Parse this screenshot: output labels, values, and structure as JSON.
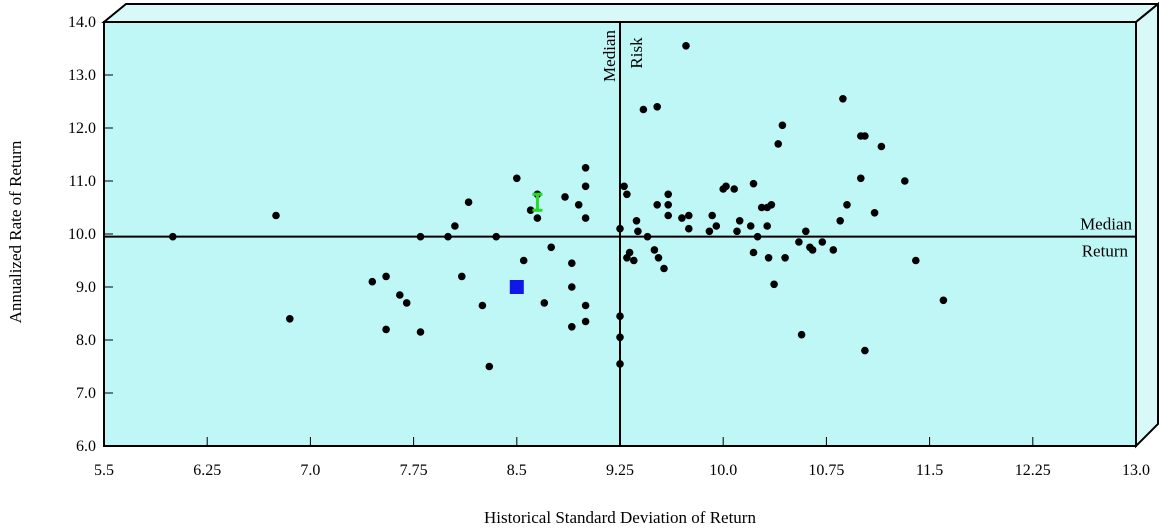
{
  "chart_data": {
    "type": "scatter",
    "xlabel": "Historical Standard Deviation of Return",
    "ylabel": "Annualized Rate of Return",
    "xlim": [
      5.5,
      13.0
    ],
    "ylim": [
      6.0,
      14.0
    ],
    "x_ticks": [
      "5.5",
      "6.25",
      "7.0",
      "7.75",
      "8.5",
      "9.25",
      "10.0",
      "10.75",
      "11.5",
      "12.25",
      "13.0"
    ],
    "y_ticks": [
      "6.0",
      "7.0",
      "8.0",
      "9.0",
      "10.0",
      "11.0",
      "12.0",
      "13.0",
      "14.0"
    ],
    "plot_background": "#bff7f7",
    "median_risk": {
      "value": 9.25,
      "label_line1": "Median",
      "label_line2": "Risk"
    },
    "median_return": {
      "value": 9.95,
      "label_line1": "Median",
      "label_line2": "Return"
    },
    "highlight_square": {
      "x": 8.5,
      "y": 9.0,
      "color": "#1018e8"
    },
    "highlight_marker": {
      "x": 8.65,
      "y": 10.6,
      "color": "#22dd22"
    },
    "point_color": "#000000",
    "points": [
      [
        6.0,
        9.95
      ],
      [
        6.75,
        10.35
      ],
      [
        6.85,
        8.4
      ],
      [
        7.45,
        9.1
      ],
      [
        7.55,
        9.2
      ],
      [
        7.55,
        8.2
      ],
      [
        7.65,
        8.85
      ],
      [
        7.7,
        8.7
      ],
      [
        7.8,
        8.15
      ],
      [
        7.8,
        9.95
      ],
      [
        8.0,
        9.95
      ],
      [
        8.05,
        10.15
      ],
      [
        8.1,
        9.2
      ],
      [
        8.15,
        10.6
      ],
      [
        8.25,
        8.65
      ],
      [
        8.3,
        7.5
      ],
      [
        8.35,
        9.95
      ],
      [
        8.5,
        11.05
      ],
      [
        8.55,
        9.5
      ],
      [
        8.6,
        10.45
      ],
      [
        8.65,
        10.3
      ],
      [
        8.65,
        10.75
      ],
      [
        8.7,
        8.7
      ],
      [
        8.75,
        9.75
      ],
      [
        8.85,
        10.7
      ],
      [
        8.9,
        9.45
      ],
      [
        8.9,
        9.0
      ],
      [
        8.9,
        8.25
      ],
      [
        8.95,
        10.55
      ],
      [
        9.0,
        11.25
      ],
      [
        9.0,
        10.9
      ],
      [
        9.0,
        10.3
      ],
      [
        9.0,
        8.65
      ],
      [
        9.0,
        8.35
      ],
      [
        9.25,
        10.1
      ],
      [
        9.25,
        8.45
      ],
      [
        9.25,
        8.05
      ],
      [
        9.25,
        7.55
      ],
      [
        9.28,
        10.9
      ],
      [
        9.3,
        10.75
      ],
      [
        9.3,
        9.55
      ],
      [
        9.32,
        9.65
      ],
      [
        9.35,
        9.5
      ],
      [
        9.37,
        10.25
      ],
      [
        9.38,
        10.05
      ],
      [
        9.42,
        12.35
      ],
      [
        9.45,
        9.95
      ],
      [
        9.5,
        9.7
      ],
      [
        9.52,
        12.4
      ],
      [
        9.52,
        10.55
      ],
      [
        9.53,
        9.55
      ],
      [
        9.57,
        9.35
      ],
      [
        9.6,
        10.75
      ],
      [
        9.6,
        10.55
      ],
      [
        9.6,
        10.35
      ],
      [
        9.7,
        10.3
      ],
      [
        9.73,
        13.55
      ],
      [
        9.75,
        10.35
      ],
      [
        9.75,
        10.1
      ],
      [
        9.9,
        10.05
      ],
      [
        9.92,
        10.35
      ],
      [
        9.95,
        10.15
      ],
      [
        10.0,
        10.85
      ],
      [
        10.02,
        10.9
      ],
      [
        10.08,
        10.85
      ],
      [
        10.1,
        10.05
      ],
      [
        10.12,
        10.25
      ],
      [
        10.2,
        10.15
      ],
      [
        10.22,
        10.95
      ],
      [
        10.22,
        9.65
      ],
      [
        10.25,
        9.95
      ],
      [
        10.28,
        10.5
      ],
      [
        10.32,
        10.5
      ],
      [
        10.32,
        10.15
      ],
      [
        10.33,
        9.55
      ],
      [
        10.35,
        10.55
      ],
      [
        10.37,
        9.05
      ],
      [
        10.4,
        11.7
      ],
      [
        10.43,
        12.05
      ],
      [
        10.45,
        9.55
      ],
      [
        10.55,
        9.85
      ],
      [
        10.57,
        8.1
      ],
      [
        10.6,
        10.05
      ],
      [
        10.63,
        9.75
      ],
      [
        10.65,
        9.7
      ],
      [
        10.72,
        9.85
      ],
      [
        10.8,
        9.7
      ],
      [
        10.85,
        10.25
      ],
      [
        10.87,
        12.55
      ],
      [
        10.9,
        10.55
      ],
      [
        11.0,
        11.05
      ],
      [
        11.0,
        11.85
      ],
      [
        11.03,
        11.85
      ],
      [
        11.03,
        7.8
      ],
      [
        11.1,
        10.4
      ],
      [
        11.15,
        11.65
      ],
      [
        11.32,
        11.0
      ],
      [
        11.4,
        9.5
      ],
      [
        11.6,
        8.75
      ]
    ]
  }
}
